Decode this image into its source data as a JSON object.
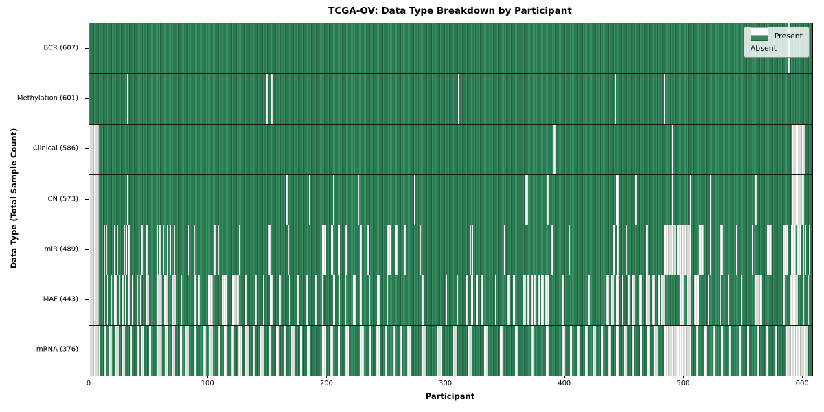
{
  "title": "TCGA-OV: Data Type Breakdown by Participant",
  "chart_data": {
    "type": "heatmap",
    "title": "TCGA-OV: Data Type Breakdown by Participant",
    "xlabel": "Participant",
    "ylabel": "Data Type (Total Sample Count)",
    "x_ticks": [
      0,
      100,
      200,
      300,
      400,
      500,
      600
    ],
    "xlim": [
      0,
      608
    ],
    "total_participants": 608,
    "grid": false,
    "legend": {
      "position": "upper right",
      "entries": [
        {
          "label": "Present",
          "color": "#2e8b57"
        },
        {
          "label": "Absent",
          "color": "#ffffff"
        }
      ]
    },
    "colors": {
      "present_fill": "#2e8b57",
      "present_edge": "#1f5f3c",
      "absent_fill": "#ffffff",
      "absent_edge": "#b7bbb7",
      "row_separator": "#161616"
    },
    "rows": [
      {
        "name": "BCR",
        "label": "BCR (607)",
        "present_count": 607,
        "absent_ranges": [
          [
            588,
            588
          ]
        ]
      },
      {
        "name": "Methylation",
        "label": "Methylation (601)",
        "present_count": 601,
        "absent_ranges": [
          [
            32,
            32
          ],
          [
            149,
            149
          ],
          [
            153,
            153
          ],
          [
            310,
            310
          ],
          [
            442,
            442
          ],
          [
            445,
            445
          ],
          [
            483,
            483
          ]
        ]
      },
      {
        "name": "Clinical",
        "label": "Clinical (586)",
        "present_count": 586,
        "absent_ranges": [
          [
            0,
            7
          ],
          [
            390,
            391
          ],
          [
            490,
            490
          ],
          [
            591,
            601
          ]
        ]
      },
      {
        "name": "CN",
        "label": "CN (573)",
        "present_count": 573,
        "absent_ranges": [
          [
            0,
            7
          ],
          [
            32,
            32
          ],
          [
            166,
            166
          ],
          [
            185,
            185
          ],
          [
            205,
            205
          ],
          [
            226,
            226
          ],
          [
            273,
            273
          ],
          [
            366,
            368
          ],
          [
            385,
            385
          ],
          [
            443,
            444
          ],
          [
            459,
            459
          ],
          [
            490,
            490
          ],
          [
            505,
            505
          ],
          [
            522,
            522
          ],
          [
            560,
            560
          ],
          [
            591,
            600
          ]
        ]
      },
      {
        "name": "miR",
        "label": "miR (489)",
        "present_count": 489,
        "absent_ranges": [
          [
            0,
            7
          ],
          [
            12,
            12
          ],
          [
            14,
            14
          ],
          [
            21,
            21
          ],
          [
            23,
            23
          ],
          [
            29,
            29
          ],
          [
            31,
            31
          ],
          [
            33,
            33
          ],
          [
            44,
            44
          ],
          [
            48,
            48
          ],
          [
            57,
            57
          ],
          [
            59,
            59
          ],
          [
            62,
            62
          ],
          [
            65,
            65
          ],
          [
            68,
            68
          ],
          [
            71,
            71
          ],
          [
            80,
            80
          ],
          [
            83,
            83
          ],
          [
            88,
            88
          ],
          [
            105,
            105
          ],
          [
            108,
            108
          ],
          [
            126,
            126
          ],
          [
            150,
            152
          ],
          [
            167,
            167
          ],
          [
            196,
            198
          ],
          [
            203,
            204
          ],
          [
            209,
            210
          ],
          [
            215,
            216
          ],
          [
            228,
            228
          ],
          [
            233,
            234
          ],
          [
            250,
            253
          ],
          [
            257,
            258
          ],
          [
            265,
            265
          ],
          [
            278,
            278
          ],
          [
            320,
            320
          ],
          [
            322,
            322
          ],
          [
            349,
            349
          ],
          [
            388,
            389
          ],
          [
            403,
            403
          ],
          [
            412,
            412
          ],
          [
            440,
            441
          ],
          [
            444,
            445
          ],
          [
            451,
            451
          ],
          [
            468,
            469
          ],
          [
            483,
            492
          ],
          [
            494,
            505
          ],
          [
            513,
            516
          ],
          [
            522,
            522
          ],
          [
            530,
            532
          ],
          [
            535,
            535
          ],
          [
            544,
            544
          ],
          [
            550,
            550
          ],
          [
            557,
            557
          ],
          [
            570,
            573
          ],
          [
            584,
            587
          ],
          [
            590,
            593
          ],
          [
            595,
            597
          ],
          [
            600,
            600
          ],
          [
            602,
            602
          ],
          [
            605,
            605
          ]
        ]
      },
      {
        "name": "MAF",
        "label": "MAF (443)",
        "present_count": 443,
        "absent_ranges": [
          [
            0,
            7
          ],
          [
            12,
            12
          ],
          [
            15,
            15
          ],
          [
            18,
            18
          ],
          [
            21,
            22
          ],
          [
            25,
            25
          ],
          [
            28,
            28
          ],
          [
            30,
            30
          ],
          [
            33,
            33
          ],
          [
            36,
            36
          ],
          [
            40,
            40
          ],
          [
            43,
            43
          ],
          [
            48,
            49
          ],
          [
            57,
            60
          ],
          [
            63,
            65
          ],
          [
            70,
            72
          ],
          [
            77,
            77
          ],
          [
            88,
            89
          ],
          [
            92,
            92
          ],
          [
            95,
            95
          ],
          [
            100,
            103
          ],
          [
            112,
            115
          ],
          [
            120,
            125
          ],
          [
            131,
            131
          ],
          [
            140,
            140
          ],
          [
            146,
            146
          ],
          [
            152,
            153
          ],
          [
            160,
            160
          ],
          [
            168,
            168
          ],
          [
            175,
            175
          ],
          [
            182,
            183
          ],
          [
            190,
            190
          ],
          [
            196,
            196
          ],
          [
            205,
            206
          ],
          [
            210,
            210
          ],
          [
            215,
            215
          ],
          [
            222,
            223
          ],
          [
            228,
            228
          ],
          [
            235,
            235
          ],
          [
            242,
            243
          ],
          [
            250,
            250
          ],
          [
            255,
            255
          ],
          [
            270,
            270
          ],
          [
            280,
            280
          ],
          [
            292,
            292
          ],
          [
            300,
            300
          ],
          [
            309,
            309
          ],
          [
            317,
            318
          ],
          [
            321,
            322
          ],
          [
            325,
            326
          ],
          [
            329,
            330
          ],
          [
            341,
            341
          ],
          [
            351,
            353
          ],
          [
            356,
            357
          ],
          [
            365,
            366
          ],
          [
            368,
            369
          ],
          [
            371,
            372
          ],
          [
            374,
            375
          ],
          [
            377,
            378
          ],
          [
            380,
            381
          ],
          [
            383,
            385
          ],
          [
            398,
            398
          ],
          [
            420,
            420
          ],
          [
            434,
            436
          ],
          [
            439,
            440
          ],
          [
            443,
            445
          ],
          [
            448,
            448
          ],
          [
            453,
            454
          ],
          [
            457,
            458
          ],
          [
            462,
            464
          ],
          [
            468,
            470
          ],
          [
            473,
            475
          ],
          [
            478,
            479
          ],
          [
            481,
            483
          ],
          [
            497,
            499
          ],
          [
            503,
            505
          ],
          [
            508,
            512
          ],
          [
            520,
            520
          ],
          [
            530,
            530
          ],
          [
            537,
            537
          ],
          [
            548,
            548
          ],
          [
            560,
            564
          ],
          [
            576,
            576
          ],
          [
            584,
            584
          ],
          [
            589,
            595
          ],
          [
            600,
            600
          ],
          [
            604,
            604
          ]
        ]
      },
      {
        "name": "mRNA",
        "label": "mRNA (376)",
        "present_count": 376,
        "absent_ranges": [
          [
            0,
            8
          ],
          [
            12,
            13
          ],
          [
            17,
            18
          ],
          [
            22,
            24
          ],
          [
            28,
            29
          ],
          [
            34,
            35
          ],
          [
            40,
            41
          ],
          [
            44,
            45
          ],
          [
            50,
            51
          ],
          [
            57,
            60
          ],
          [
            64,
            65
          ],
          [
            70,
            71
          ],
          [
            76,
            77
          ],
          [
            81,
            83
          ],
          [
            88,
            89
          ],
          [
            95,
            97
          ],
          [
            101,
            103
          ],
          [
            108,
            109
          ],
          [
            113,
            115
          ],
          [
            119,
            121
          ],
          [
            125,
            127
          ],
          [
            131,
            133
          ],
          [
            138,
            139
          ],
          [
            144,
            146
          ],
          [
            151,
            152
          ],
          [
            157,
            159
          ],
          [
            164,
            165
          ],
          [
            170,
            172
          ],
          [
            177,
            178
          ],
          [
            183,
            185
          ],
          [
            196,
            198
          ],
          [
            202,
            204
          ],
          [
            209,
            210
          ],
          [
            215,
            217
          ],
          [
            228,
            230
          ],
          [
            235,
            236
          ],
          [
            241,
            243
          ],
          [
            248,
            249
          ],
          [
            255,
            256
          ],
          [
            261,
            262
          ],
          [
            267,
            269
          ],
          [
            280,
            282
          ],
          [
            293,
            295
          ],
          [
            306,
            308
          ],
          [
            319,
            321
          ],
          [
            332,
            334
          ],
          [
            345,
            347
          ],
          [
            358,
            360
          ],
          [
            371,
            373
          ],
          [
            384,
            386
          ],
          [
            397,
            399
          ],
          [
            404,
            405
          ],
          [
            410,
            412
          ],
          [
            417,
            418
          ],
          [
            424,
            425
          ],
          [
            430,
            431
          ],
          [
            436,
            438
          ],
          [
            443,
            444
          ],
          [
            450,
            451
          ],
          [
            456,
            457
          ],
          [
            463,
            464
          ],
          [
            469,
            470
          ],
          [
            475,
            477
          ],
          [
            483,
            505
          ],
          [
            510,
            511
          ],
          [
            517,
            518
          ],
          [
            524,
            525
          ],
          [
            531,
            532
          ],
          [
            538,
            539
          ],
          [
            546,
            547
          ],
          [
            553,
            554
          ],
          [
            561,
            562
          ],
          [
            569,
            570
          ],
          [
            576,
            577
          ],
          [
            586,
            603
          ]
        ]
      }
    ]
  }
}
